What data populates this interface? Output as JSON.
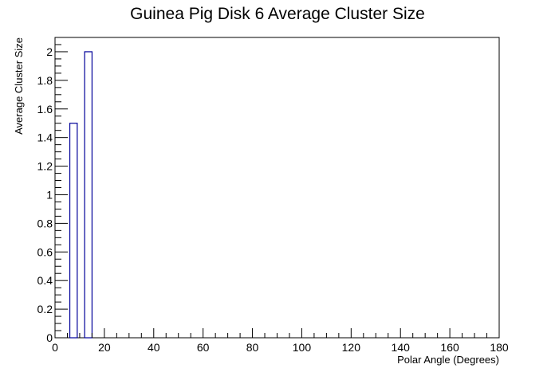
{
  "chart_data": {
    "type": "bar",
    "title": "Guinea Pig Disk 6 Average Cluster Size",
    "xlabel": "Polar Angle (Degrees)",
    "ylabel": "Average Cluster Size",
    "xlim": [
      0,
      180
    ],
    "ylim": [
      0,
      2.1
    ],
    "x_ticks": [
      0,
      20,
      40,
      60,
      80,
      100,
      120,
      140,
      160,
      180
    ],
    "x_tick_labels": [
      "0",
      "20",
      "40",
      "60",
      "80",
      "100",
      "120",
      "140",
      "160",
      "180"
    ],
    "y_ticks": [
      0,
      0.2,
      0.4,
      0.6,
      0.8,
      1,
      1.2,
      1.4,
      1.6,
      1.8,
      2
    ],
    "y_tick_labels": [
      "0",
      "0.2",
      "0.4",
      "0.6",
      "0.8",
      "1",
      "1.2",
      "1.4",
      "1.6",
      "1.8",
      "2"
    ],
    "bins": [
      {
        "x_low": 6,
        "x_high": 9,
        "value": 1.5
      },
      {
        "x_low": 12,
        "x_high": 15,
        "value": 2.0
      }
    ],
    "bar_color": "#000099",
    "grid": false,
    "legend": "none"
  }
}
